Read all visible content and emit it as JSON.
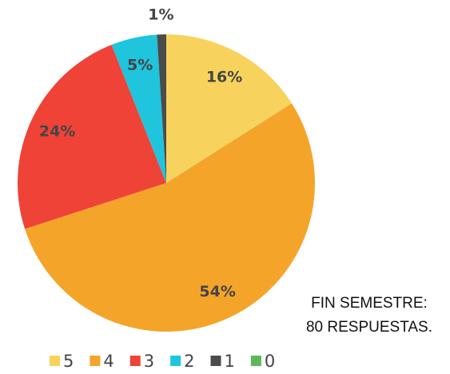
{
  "chart_data": {
    "type": "pie",
    "categories": [
      "5",
      "4",
      "3",
      "2",
      "1",
      "0"
    ],
    "values": [
      16,
      54,
      24,
      5,
      1,
      0
    ],
    "value_labels": [
      "16%",
      "54%",
      "24%",
      "5%",
      "1%",
      null
    ],
    "colors": [
      "#f7d35e",
      "#f5a42a",
      "#ef4337",
      "#1fc4dd",
      "#4b4b4b",
      "#5cb85c"
    ],
    "annotation": [
      "FIN SEMESTRE:",
      "80 RESPUESTAS."
    ],
    "legend": "bottom"
  }
}
